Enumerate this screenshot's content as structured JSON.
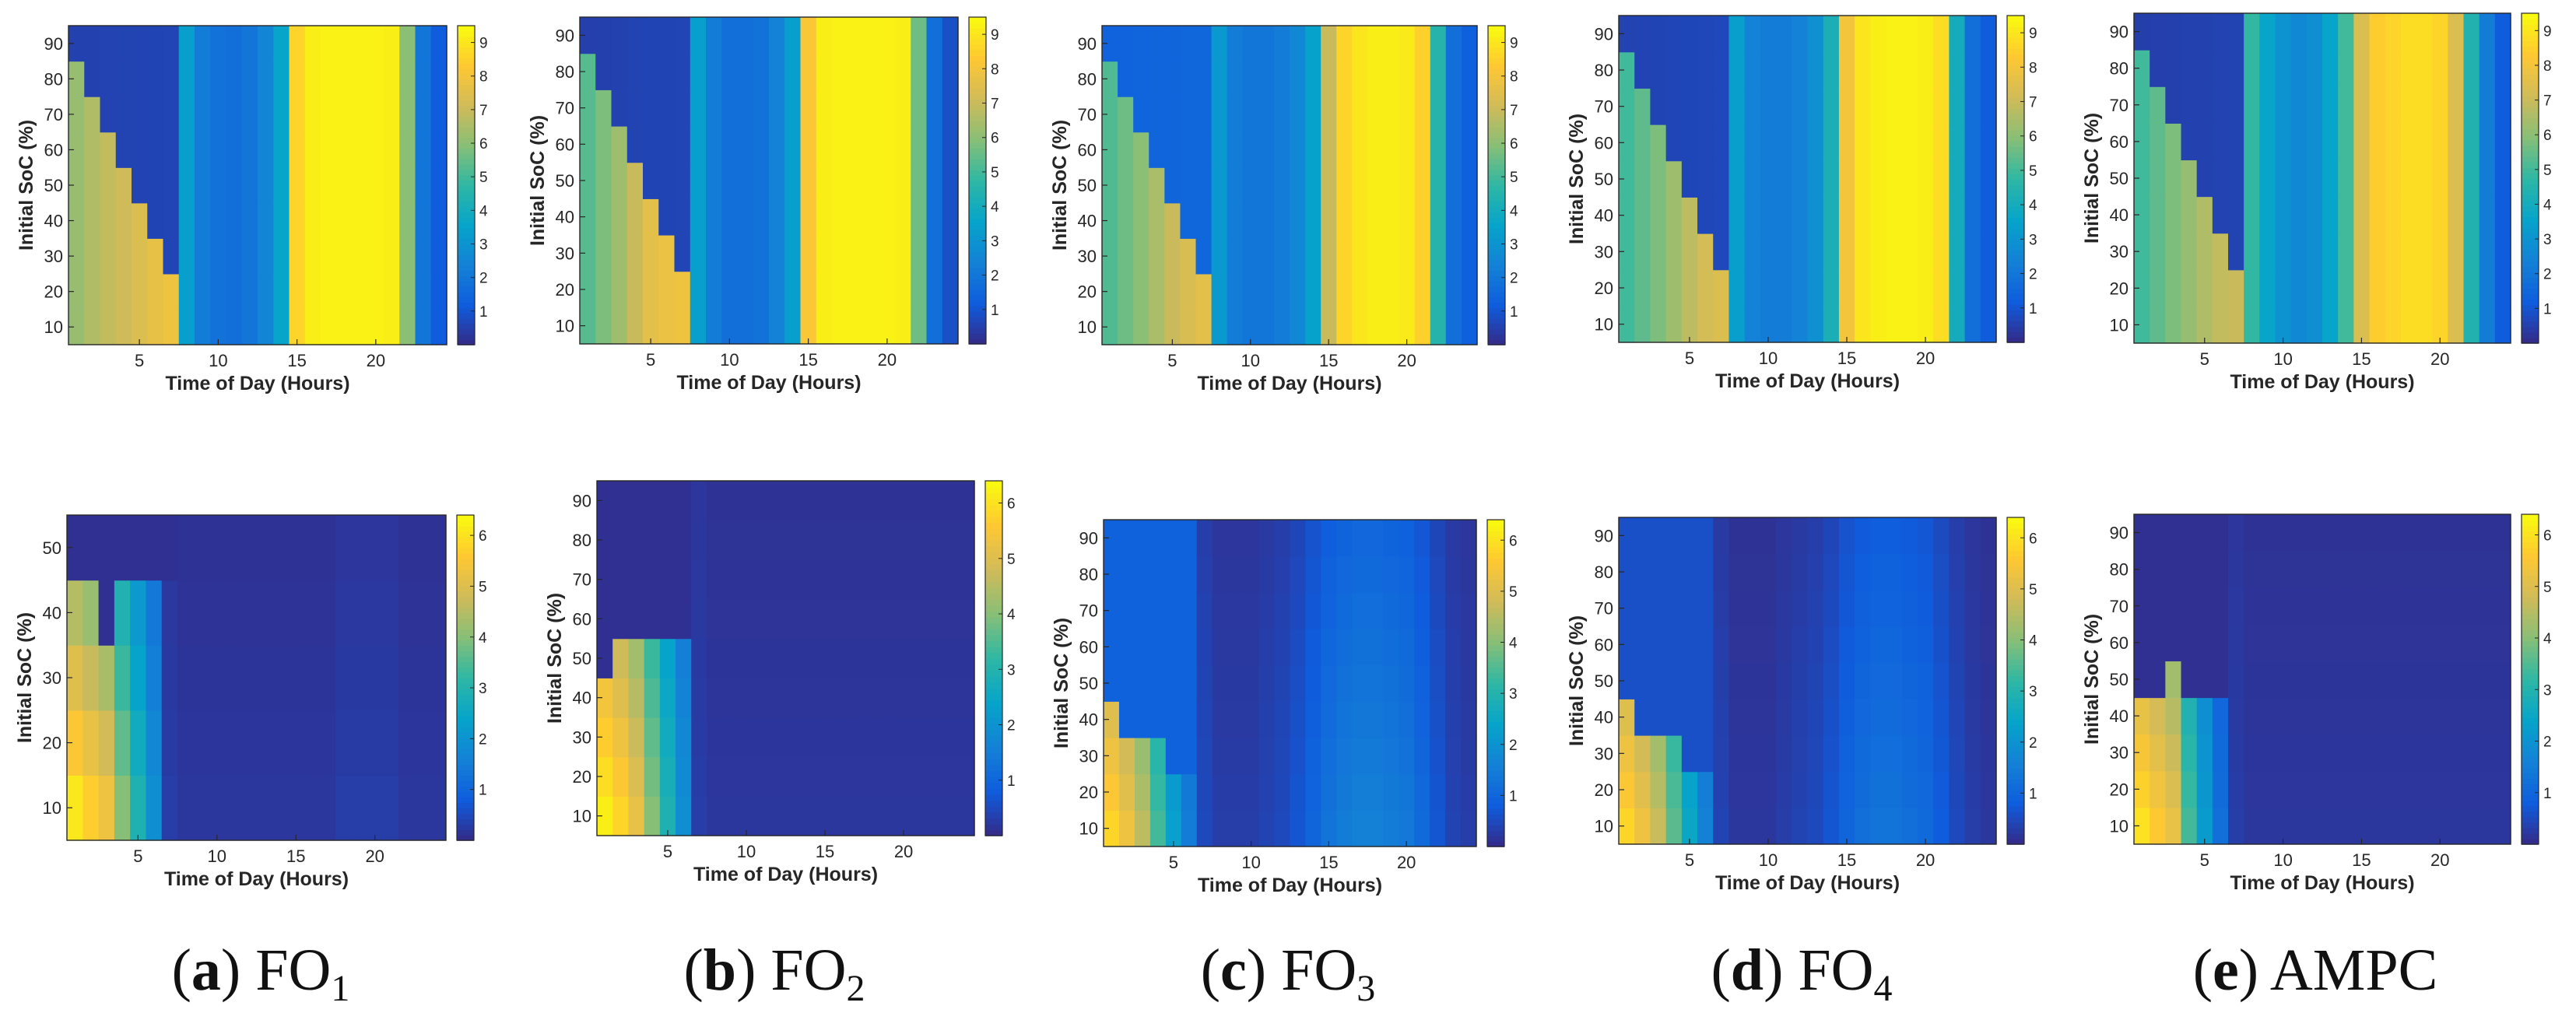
{
  "figure": {
    "captions": [
      {
        "letter": "a",
        "name": "FO",
        "sub": "1"
      },
      {
        "letter": "b",
        "name": "FO",
        "sub": "2"
      },
      {
        "letter": "c",
        "name": "FO",
        "sub": "3"
      },
      {
        "letter": "d",
        "name": "FO",
        "sub": "4"
      },
      {
        "letter": "e",
        "name": "AMPC",
        "sub": ""
      }
    ]
  },
  "colors": {
    "parula": [
      "#352a87",
      "#0f5cdd",
      "#1481d6",
      "#06a4ca",
      "#2eb7a4",
      "#87bf77",
      "#d1bb59",
      "#fec832",
      "#f9fb0e"
    ]
  },
  "chart_data": [
    {
      "id": "top-a",
      "type": "heatmap",
      "title": "",
      "xlabel": "Time of Day (Hours)",
      "ylabel": "Initial SoC (%)",
      "xlim": [
        0.5,
        24.5
      ],
      "ylim": [
        5,
        95
      ],
      "xticks": [
        5,
        10,
        15,
        20
      ],
      "yticks": [
        10,
        20,
        30,
        40,
        50,
        60,
        70,
        80,
        90
      ],
      "clim": [
        0,
        9.5
      ],
      "cbticks": [
        1,
        2,
        3,
        4,
        5,
        6,
        7,
        8,
        9
      ],
      "x_hours": 24,
      "soc_rows": [
        10,
        20,
        30,
        40,
        50,
        60,
        70,
        80,
        90
      ],
      "profile": [
        6.2,
        6.6,
        6.9,
        7.1,
        7.4,
        7.7,
        7.9,
        3.4,
        2.2,
        1.9,
        1.8,
        2.0,
        2.5,
        3.6,
        8.6,
        9.2,
        9.3,
        9.3,
        9.3,
        9.3,
        9.2,
        6.0,
        2.0,
        1.2
      ],
      "front": [
        10,
        20,
        30,
        40,
        50,
        60,
        70,
        80,
        90
      ],
      "floor": 0.25
    },
    {
      "id": "top-b",
      "type": "heatmap",
      "title": "",
      "xlabel": "Time of Day (Hours)",
      "ylabel": "Initial SoC (%)",
      "xlim": [
        0.5,
        24.5
      ],
      "ylim": [
        5,
        95
      ],
      "xticks": [
        5,
        10,
        15,
        20
      ],
      "yticks": [
        10,
        20,
        30,
        40,
        50,
        60,
        70,
        80,
        90
      ],
      "clim": [
        0,
        9.5
      ],
      "cbticks": [
        1,
        2,
        3,
        4,
        5,
        6,
        7,
        8,
        9
      ],
      "x_hours": 24,
      "soc_rows": [
        10,
        20,
        30,
        40,
        50,
        60,
        70,
        80,
        90
      ],
      "profile": [
        5.3,
        5.8,
        6.3,
        7.0,
        7.6,
        7.8,
        7.9,
        3.4,
        2.2,
        1.8,
        1.8,
        1.9,
        2.4,
        3.4,
        8.2,
        9.2,
        9.3,
        9.3,
        9.3,
        9.3,
        9.2,
        5.6,
        1.8,
        0.9
      ],
      "front": [
        10,
        20,
        30,
        40,
        50,
        60,
        70,
        80,
        90
      ],
      "floor": 0.25
    },
    {
      "id": "top-c",
      "type": "heatmap",
      "title": "",
      "xlabel": "Time of Day (Hours)",
      "ylabel": "Initial SoC (%)",
      "xlim": [
        0.5,
        24.5
      ],
      "ylim": [
        5,
        95
      ],
      "xticks": [
        5,
        10,
        15,
        20
      ],
      "yticks": [
        10,
        20,
        30,
        40,
        50,
        60,
        70,
        80,
        90
      ],
      "clim": [
        0,
        9.5
      ],
      "cbticks": [
        1,
        2,
        3,
        4,
        5,
        6,
        7,
        8,
        9
      ],
      "x_hours": 24,
      "soc_rows": [
        10,
        20,
        30,
        40,
        50,
        60,
        70,
        80,
        90
      ],
      "profile": [
        5.2,
        5.6,
        6.0,
        6.5,
        7.0,
        7.3,
        7.6,
        3.2,
        2.2,
        2.0,
        2.0,
        2.2,
        2.6,
        3.5,
        7.0,
        8.6,
        9.0,
        9.2,
        9.2,
        9.1,
        8.5,
        4.5,
        1.8,
        1.3
      ],
      "front": [
        10,
        20,
        30,
        40,
        50,
        60,
        70,
        80,
        90
      ],
      "floor": 1.2
    },
    {
      "id": "top-d",
      "type": "heatmap",
      "title": "",
      "xlabel": "Time of Day (Hours)",
      "ylabel": "Initial SoC (%)",
      "xlim": [
        0.5,
        24.5
      ],
      "ylim": [
        5,
        95
      ],
      "xticks": [
        5,
        10,
        15,
        20
      ],
      "yticks": [
        10,
        20,
        30,
        40,
        50,
        60,
        70,
        80,
        90
      ],
      "clim": [
        0,
        9.5
      ],
      "cbticks": [
        1,
        2,
        3,
        4,
        5,
        6,
        7,
        8,
        9
      ],
      "x_hours": 24,
      "soc_rows": [
        10,
        20,
        30,
        40,
        50,
        60,
        70,
        80,
        90
      ],
      "profile": [
        5.0,
        5.4,
        5.8,
        6.3,
        6.8,
        7.2,
        7.4,
        3.4,
        2.4,
        2.2,
        2.2,
        2.4,
        2.9,
        4.2,
        8.0,
        9.0,
        9.2,
        9.3,
        9.3,
        9.2,
        8.8,
        4.0,
        1.8,
        1.2
      ],
      "front": [
        10,
        20,
        30,
        40,
        50,
        60,
        70,
        80,
        90
      ],
      "floor": 0.35
    },
    {
      "id": "top-e",
      "type": "heatmap",
      "title": "",
      "xlabel": "Time of Day (Hours)",
      "ylabel": "Initial SoC (%)",
      "xlim": [
        0.5,
        24.5
      ],
      "ylim": [
        5,
        95
      ],
      "xticks": [
        5,
        10,
        15,
        20
      ],
      "yticks": [
        10,
        20,
        30,
        40,
        50,
        60,
        70,
        80,
        90
      ],
      "clim": [
        0,
        9.5
      ],
      "cbticks": [
        1,
        2,
        3,
        4,
        5,
        6,
        7,
        8,
        9
      ],
      "x_hours": 24,
      "soc_rows": [
        10,
        20,
        30,
        40,
        50,
        60,
        70,
        80,
        90
      ],
      "profile": [
        5.0,
        5.4,
        5.8,
        6.2,
        6.6,
        6.9,
        7.0,
        4.8,
        3.6,
        3.0,
        2.6,
        2.8,
        3.6,
        5.0,
        7.4,
        8.4,
        8.6,
        8.8,
        8.8,
        8.6,
        7.4,
        4.4,
        2.2,
        1.2
      ],
      "front": [
        10,
        20,
        30,
        40,
        50,
        60,
        70,
        80,
        90
      ],
      "floor": 0.25
    },
    {
      "id": "bottom-a",
      "type": "heatmap",
      "title": "",
      "xlabel": "Time of Day (Hours)",
      "ylabel": "Initial SoC (%)",
      "xlim": [
        0.5,
        24.5
      ],
      "ylim": [
        5,
        55
      ],
      "xticks": [
        5,
        10,
        15,
        20
      ],
      "yticks": [
        10,
        20,
        30,
        40,
        50
      ],
      "clim": [
        0,
        6.4
      ],
      "cbticks": [
        1,
        2,
        3,
        4,
        5,
        6
      ],
      "x_hours": 24,
      "soc_rows": [
        10,
        20,
        30,
        40,
        50
      ],
      "profile": [
        6.1,
        5.7,
        5.3,
        4.0,
        2.9,
        1.9,
        0.3,
        0.2,
        0.2,
        0.2,
        0.2,
        0.2,
        0.2,
        0.2,
        0.2,
        0.2,
        0.2,
        0.3,
        0.3,
        0.3,
        0.3,
        0.2,
        0.2,
        0.2
      ],
      "front": [
        40,
        40,
        30,
        40,
        40,
        40,
        40,
        50,
        50,
        50,
        50,
        50,
        50,
        50,
        50,
        50,
        50,
        50,
        50,
        50,
        50,
        50,
        50,
        50
      ],
      "floor": 0.1
    },
    {
      "id": "bottom-b",
      "type": "heatmap",
      "title": "",
      "xlabel": "Time of Day (Hours)",
      "ylabel": "Initial SoC (%)",
      "xlim": [
        0.5,
        24.5
      ],
      "ylim": [
        5,
        95
      ],
      "xticks": [
        5,
        10,
        15,
        20
      ],
      "yticks": [
        10,
        20,
        30,
        40,
        50,
        60,
        70,
        80,
        90
      ],
      "clim": [
        0,
        6.4
      ],
      "cbticks": [
        1,
        2,
        3,
        4,
        5,
        6
      ],
      "x_hours": 24,
      "soc_rows": [
        10,
        20,
        30,
        40,
        50,
        60,
        70,
        80,
        90
      ],
      "profile": [
        6.2,
        5.8,
        5.2,
        4.0,
        2.9,
        1.9,
        0.3,
        0.2,
        0.2,
        0.2,
        0.2,
        0.2,
        0.2,
        0.2,
        0.2,
        0.2,
        0.2,
        0.2,
        0.2,
        0.2,
        0.2,
        0.2,
        0.2,
        0.2
      ],
      "front": [
        40,
        50,
        50,
        50,
        50,
        50,
        90,
        90,
        90,
        90,
        90,
        90,
        90,
        90,
        90,
        90,
        90,
        90,
        90,
        90,
        90,
        90,
        90,
        90
      ],
      "floor": 0.1
    },
    {
      "id": "bottom-c",
      "type": "heatmap",
      "title": "",
      "xlabel": "Time of Day (Hours)",
      "ylabel": "Initial SoC (%)",
      "xlim": [
        0.5,
        24.5
      ],
      "ylim": [
        5,
        95
      ],
      "xticks": [
        5,
        10,
        15,
        20
      ],
      "yticks": [
        10,
        20,
        30,
        40,
        50,
        60,
        70,
        80,
        90
      ],
      "clim": [
        0,
        6.4
      ],
      "cbticks": [
        1,
        2,
        3,
        4,
        5,
        6
      ],
      "x_hours": 24,
      "soc_rows": [
        10,
        20,
        30,
        40,
        50,
        60,
        70,
        80,
        90
      ],
      "profile": [
        5.8,
        5.3,
        4.6,
        3.4,
        2.3,
        1.5,
        0.5,
        0.3,
        0.3,
        0.3,
        0.4,
        0.5,
        0.7,
        1.0,
        1.3,
        1.5,
        1.6,
        1.6,
        1.5,
        1.4,
        1.1,
        0.7,
        0.4,
        0.3
      ],
      "front": [
        40,
        30,
        30,
        30,
        20,
        20,
        90,
        90,
        90,
        90,
        90,
        90,
        90,
        90,
        90,
        90,
        90,
        90,
        90,
        90,
        90,
        90,
        90,
        90
      ],
      "floor": 0.9
    },
    {
      "id": "bottom-d",
      "type": "heatmap",
      "title": "",
      "xlabel": "Time of Day (Hours)",
      "ylabel": "Initial SoC (%)",
      "xlim": [
        0.5,
        24.5
      ],
      "ylim": [
        5,
        95
      ],
      "xticks": [
        5,
        10,
        15,
        20
      ],
      "yticks": [
        10,
        20,
        30,
        40,
        50,
        60,
        70,
        80,
        90
      ],
      "clim": [
        0,
        6.4
      ],
      "cbticks": [
        1,
        2,
        3,
        4,
        5,
        6
      ],
      "x_hours": 24,
      "soc_rows": [
        10,
        20,
        30,
        40,
        50,
        60,
        70,
        80,
        90
      ],
      "profile": [
        5.8,
        5.3,
        4.7,
        3.6,
        2.5,
        1.6,
        0.4,
        0.2,
        0.2,
        0.2,
        0.3,
        0.4,
        0.5,
        0.7,
        1.0,
        1.2,
        1.3,
        1.3,
        1.2,
        1.1,
        0.8,
        0.5,
        0.3,
        0.2
      ],
      "front": [
        40,
        30,
        30,
        30,
        20,
        20,
        90,
        90,
        90,
        90,
        90,
        90,
        90,
        90,
        90,
        90,
        90,
        90,
        90,
        90,
        90,
        90,
        90,
        90
      ],
      "floor": 0.6
    },
    {
      "id": "bottom-e",
      "type": "heatmap",
      "title": "",
      "xlabel": "Time of Day (Hours)",
      "ylabel": "Initial SoC (%)",
      "xlim": [
        0.5,
        24.5
      ],
      "ylim": [
        5,
        95
      ],
      "xticks": [
        5,
        10,
        15,
        20
      ],
      "yticks": [
        10,
        20,
        30,
        40,
        50,
        60,
        70,
        80,
        90
      ],
      "clim": [
        0,
        6.4
      ],
      "cbticks": [
        1,
        2,
        3,
        4,
        5,
        6
      ],
      "x_hours": 24,
      "soc_rows": [
        10,
        20,
        30,
        40,
        50,
        60,
        70,
        80,
        90
      ],
      "profile": [
        6.0,
        5.6,
        5.2,
        3.4,
        2.2,
        1.2,
        0.3,
        0.2,
        0.2,
        0.2,
        0.2,
        0.2,
        0.2,
        0.2,
        0.2,
        0.2,
        0.2,
        0.2,
        0.2,
        0.2,
        0.2,
        0.2,
        0.2,
        0.2
      ],
      "front": [
        40,
        40,
        50,
        40,
        40,
        40,
        90,
        90,
        90,
        90,
        90,
        90,
        90,
        90,
        90,
        90,
        90,
        90,
        90,
        90,
        90,
        90,
        90,
        90
      ],
      "floor": 0.1
    }
  ]
}
